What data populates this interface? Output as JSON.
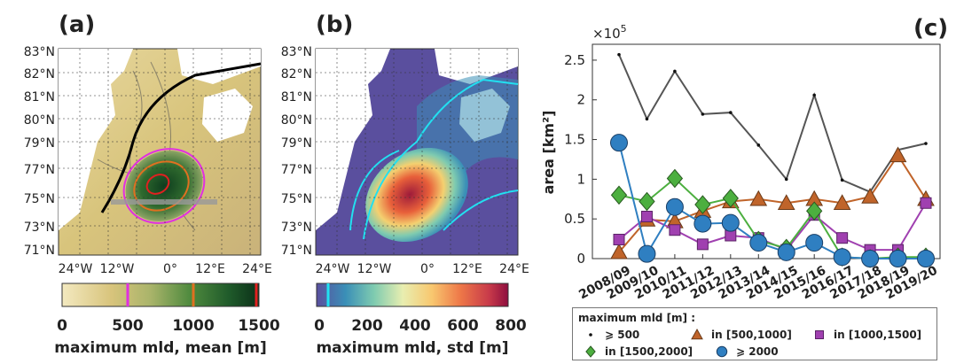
{
  "panels": {
    "a": {
      "label": "(a)",
      "cbar_label": "maximum mld, mean [m]",
      "cbar_ticks": [
        "0",
        "500",
        "1000",
        "1500"
      ]
    },
    "b": {
      "label": "(b)",
      "cbar_label": "maximum mld, std [m]",
      "cbar_ticks": [
        "0",
        "200",
        "400",
        "600",
        "800"
      ]
    },
    "c": {
      "label": "(c)"
    }
  },
  "map_axes": {
    "lat_ticks": [
      "83°N",
      "82°N",
      "81°N",
      "80°N",
      "79°N",
      "77°N",
      "75°N",
      "73°N",
      "71°N"
    ],
    "lon_ticks": [
      "24°W",
      "12°W",
      "0°",
      "12°E",
      "24°E"
    ]
  },
  "colors": {
    "total": "#555555",
    "r500_1000": "#c0642a",
    "r1000_1500": "#a040b0",
    "r1500_2000": "#4caf3f",
    "ge2000": "#2f7fc1",
    "ocean_b": "#5a4f9e",
    "land": "#ffffff"
  },
  "chart_data": {
    "type": "line",
    "title": "",
    "xlabel": "",
    "ylabel": "area [km²]",
    "y_multiplier": "×10",
    "y_multiplier_exp": "5",
    "ylim": [
      0,
      2.7
    ],
    "yticks": [
      "0",
      "0.5",
      "1",
      "1.5",
      "2",
      "2.5"
    ],
    "ytick_values": [
      0,
      0.5,
      1,
      1.5,
      2,
      2.5
    ],
    "categories": [
      "2008/09",
      "2009/10",
      "2010/11",
      "2011/12",
      "2012/13",
      "2013/14",
      "2014/15",
      "2015/16",
      "2016/17",
      "2017/18",
      "2018/19",
      "2019/20"
    ],
    "legend_title": "maximum mld [m] :",
    "series": [
      {
        "name": "⩾ 500",
        "marker": "dot",
        "color": "#555555",
        "values": [
          2.57,
          1.76,
          2.36,
          1.82,
          1.84,
          1.43,
          1.0,
          2.06,
          0.99,
          0.84,
          1.37,
          1.45
        ]
      },
      {
        "name": "in [500,1000]",
        "marker": "triangle",
        "color": "#c0642a",
        "values": [
          0.08,
          0.49,
          0.47,
          0.6,
          0.72,
          0.75,
          0.7,
          0.75,
          0.7,
          0.78,
          1.3,
          0.75
        ]
      },
      {
        "name": "in [1000,1500]",
        "marker": "square",
        "color": "#a040b0",
        "values": [
          0.24,
          0.53,
          0.36,
          0.18,
          0.29,
          0.26,
          0.11,
          0.55,
          0.26,
          0.11,
          0.11,
          0.7
        ]
      },
      {
        "name": "in [1500,2000]",
        "marker": "diamond",
        "color": "#4caf3f",
        "values": [
          0.8,
          0.72,
          1.01,
          0.68,
          0.76,
          0.23,
          0.13,
          0.6,
          0.02,
          0.0,
          0.02,
          0.02
        ]
      },
      {
        "name": "⩾ 2000",
        "marker": "circle",
        "color": "#2f7fc1",
        "values": [
          1.46,
          0.06,
          0.65,
          0.44,
          0.45,
          0.2,
          0.08,
          0.2,
          0.02,
          0.0,
          0.0,
          0.0
        ]
      }
    ]
  }
}
